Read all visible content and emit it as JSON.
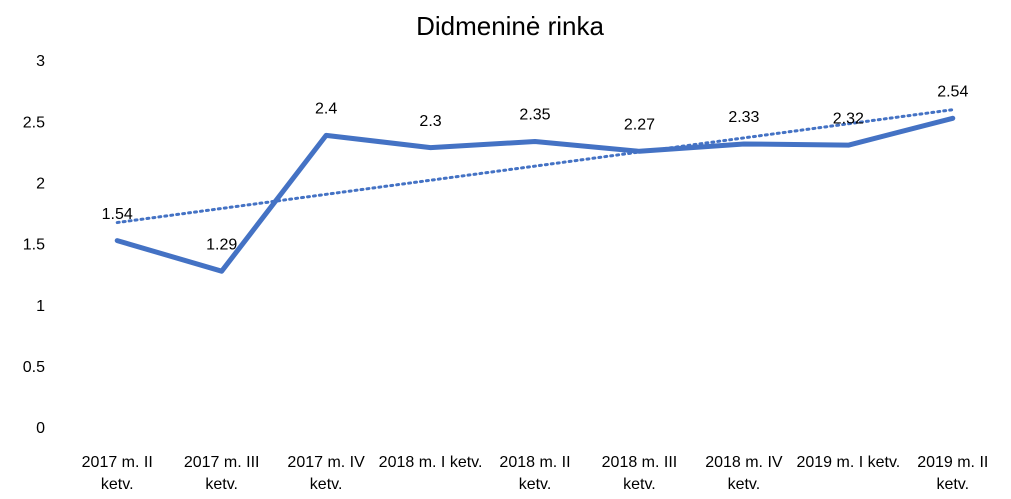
{
  "chart_data": {
    "type": "line",
    "title": "Didmeninė rinka",
    "categories": [
      "2017 m. II ketv.",
      "2017 m. III ketv.",
      "2017 m. IV ketv.",
      "2018 m. I ketv.",
      "2018 m. II ketv.",
      "2018 m. III ketv.",
      "2018 m. IV ketv.",
      "2019 m. I ketv.",
      "2019 m. II ketv."
    ],
    "values": [
      1.54,
      1.29,
      2.4,
      2.3,
      2.35,
      2.27,
      2.33,
      2.32,
      2.54
    ],
    "color": "#4472c4",
    "ylim": [
      0,
      3
    ],
    "yticks": [
      0,
      0.5,
      1,
      1.5,
      2,
      2.5,
      3
    ],
    "grid": false,
    "trendline": "linear"
  }
}
